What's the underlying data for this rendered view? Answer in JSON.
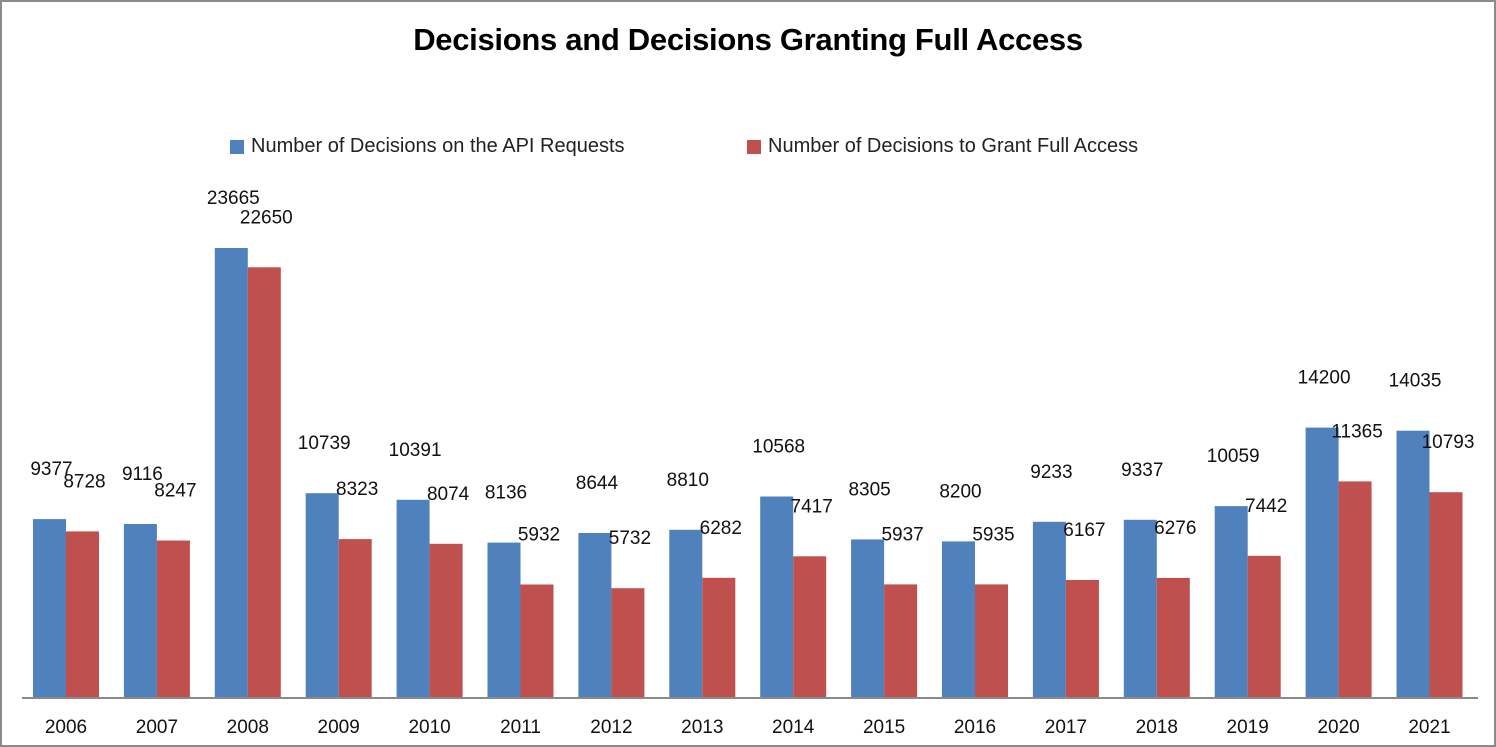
{
  "chart_data": {
    "type": "bar",
    "title": "Decisions and Decisions Granting Full Access",
    "xlabel": "",
    "ylabel": "",
    "ylim": [
      0,
      23665
    ],
    "grid": false,
    "legend_position": "top",
    "categories": [
      "2006",
      "2007",
      "2008",
      "2009",
      "2010",
      "2011",
      "2012",
      "2013",
      "2014",
      "2015",
      "2016",
      "2017",
      "2018",
      "2019",
      "2020",
      "2021"
    ],
    "series": [
      {
        "name": "Number of Decisions on the API Requests",
        "color": "#4f81bd",
        "values": [
          9377,
          9116,
          23665,
          10739,
          10391,
          8136,
          8644,
          8810,
          10568,
          8305,
          8200,
          9233,
          9337,
          10059,
          14200,
          14035
        ]
      },
      {
        "name": "Number of Decisions to Grant Full Access",
        "color": "#c0504d",
        "values": [
          8728,
          8247,
          22650,
          8323,
          8074,
          5932,
          5732,
          6282,
          7417,
          5937,
          5935,
          6167,
          6276,
          7442,
          11365,
          10793
        ]
      }
    ]
  }
}
